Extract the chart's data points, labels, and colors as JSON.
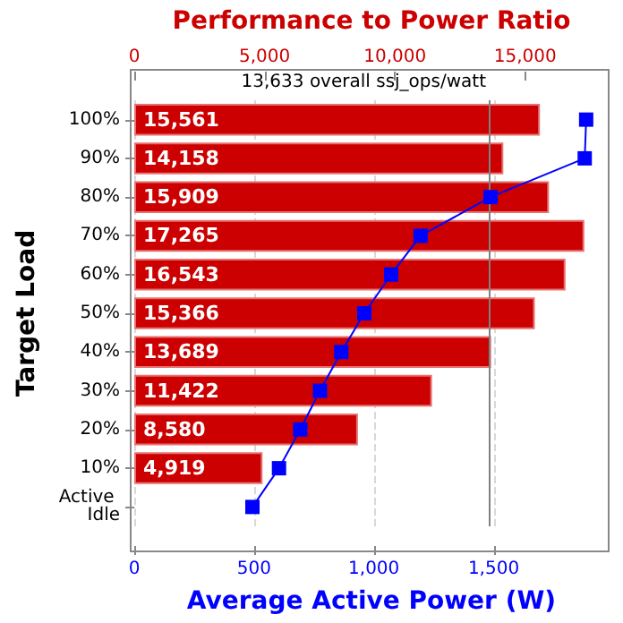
{
  "chart_data": {
    "type": "bar",
    "orientation": "horizontal",
    "x2label": "Performance to Power Ratio",
    "xlabel": "Average Active Power (W)",
    "ylabel": "Target Load",
    "categories": [
      "100%",
      "90%",
      "80%",
      "70%",
      "60%",
      "50%",
      "40%",
      "30%",
      "20%",
      "10%",
      "Active Idle"
    ],
    "series": [
      {
        "axis": "x2",
        "color": "#cc0000",
        "values": [
          15561,
          14158,
          15909,
          17265,
          16543,
          15366,
          13689,
          11422,
          8580,
          4919,
          null
        ],
        "value_labels": [
          "15,561",
          "14,158",
          "15,909",
          "17,265",
          "16,543",
          "15,366",
          "13,689",
          "11,422",
          "8,580",
          "4,919",
          null
        ]
      },
      {
        "type": "line",
        "color": "#0000ff",
        "marker": "square",
        "line_style": "solid",
        "values": [
          1886,
          1880,
          1487,
          1195,
          1072,
          960,
          864,
          775,
          693,
          604,
          493
        ]
      }
    ],
    "xlim": [
      0,
      1980
    ],
    "xticks": [
      0,
      500,
      {
        "value": 1000,
        "label": "1,000"
      },
      {
        "value": 1500,
        "label": "1,500"
      }
    ],
    "x2lim": [
      0,
      18200
    ],
    "x2ticks": [
      0,
      {
        "value": 5000,
        "label": "5,000"
      },
      {
        "value": 10000,
        "label": "10,000"
      },
      {
        "value": 15000,
        "label": "15,000"
      }
    ],
    "ref_lines": [
      {
        "axis": "x2",
        "value": 13633,
        "label": "13,633 overall ssj_ops/watt",
        "color": "#808080"
      }
    ],
    "grid": "x"
  }
}
